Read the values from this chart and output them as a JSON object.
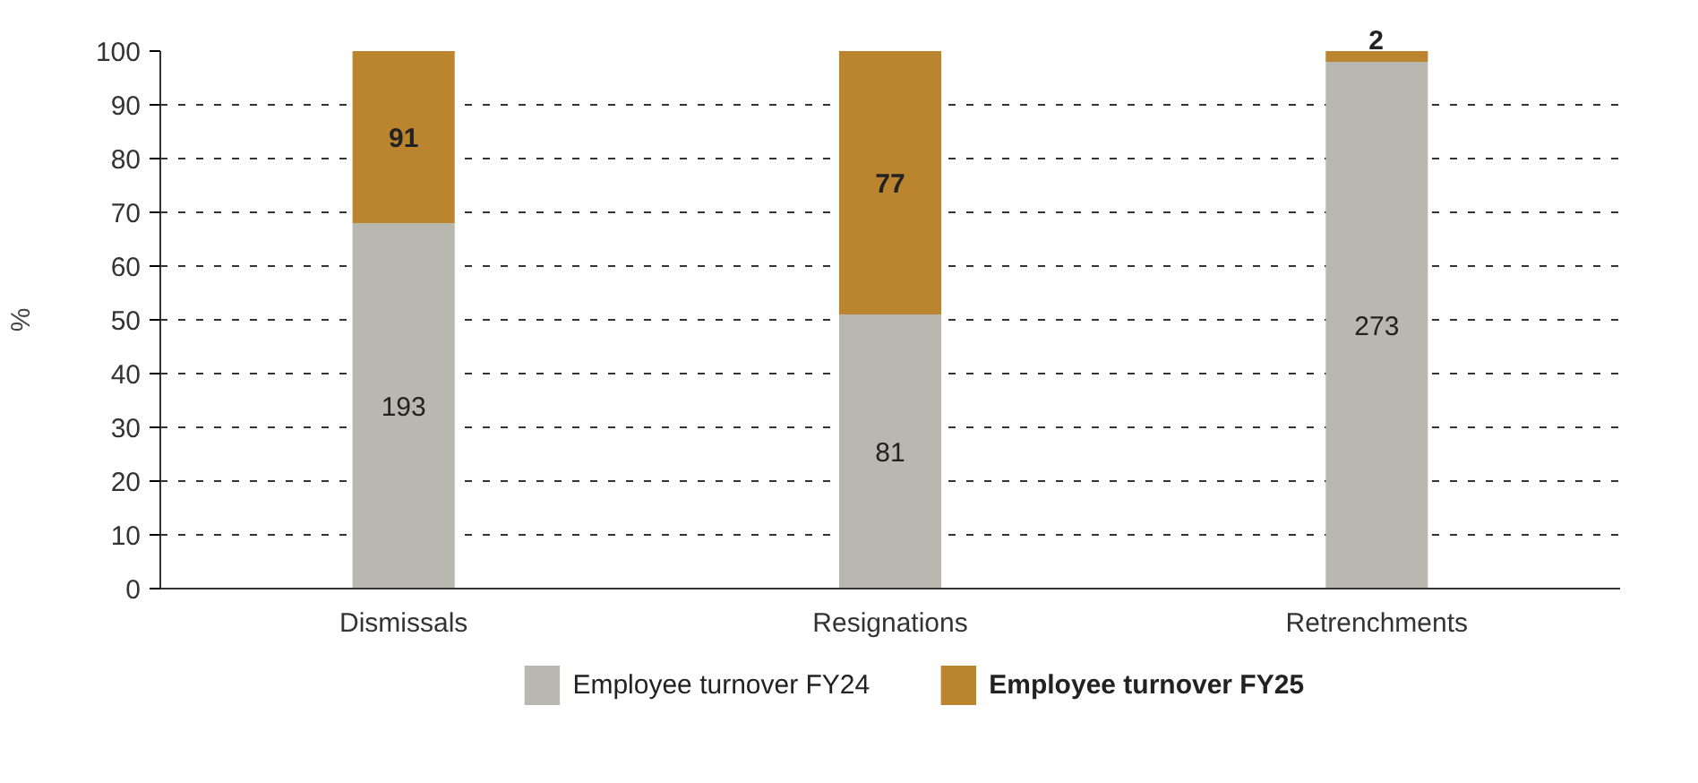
{
  "chart_data": {
    "type": "bar",
    "stacked": true,
    "ylabel": "%",
    "categories": [
      "Dismissals",
      "Resignations",
      "Retrenchments"
    ],
    "series": [
      {
        "name": "Employee turnover FY24",
        "color": "#b8b8b0",
        "values": [
          68,
          51,
          98
        ]
      },
      {
        "name": "Employee turnover FY25",
        "color": "#bb842e",
        "values": [
          32,
          49,
          2
        ]
      }
    ],
    "annotations": [
      "193",
      "81",
      "273",
      "91",
      "77",
      "2"
    ],
    "ylim": [
      0,
      100
    ],
    "yticks": [
      0,
      10,
      20,
      30,
      40,
      50,
      60,
      70,
      80,
      90,
      100
    ],
    "grid": "y",
    "legend": "bottom"
  }
}
